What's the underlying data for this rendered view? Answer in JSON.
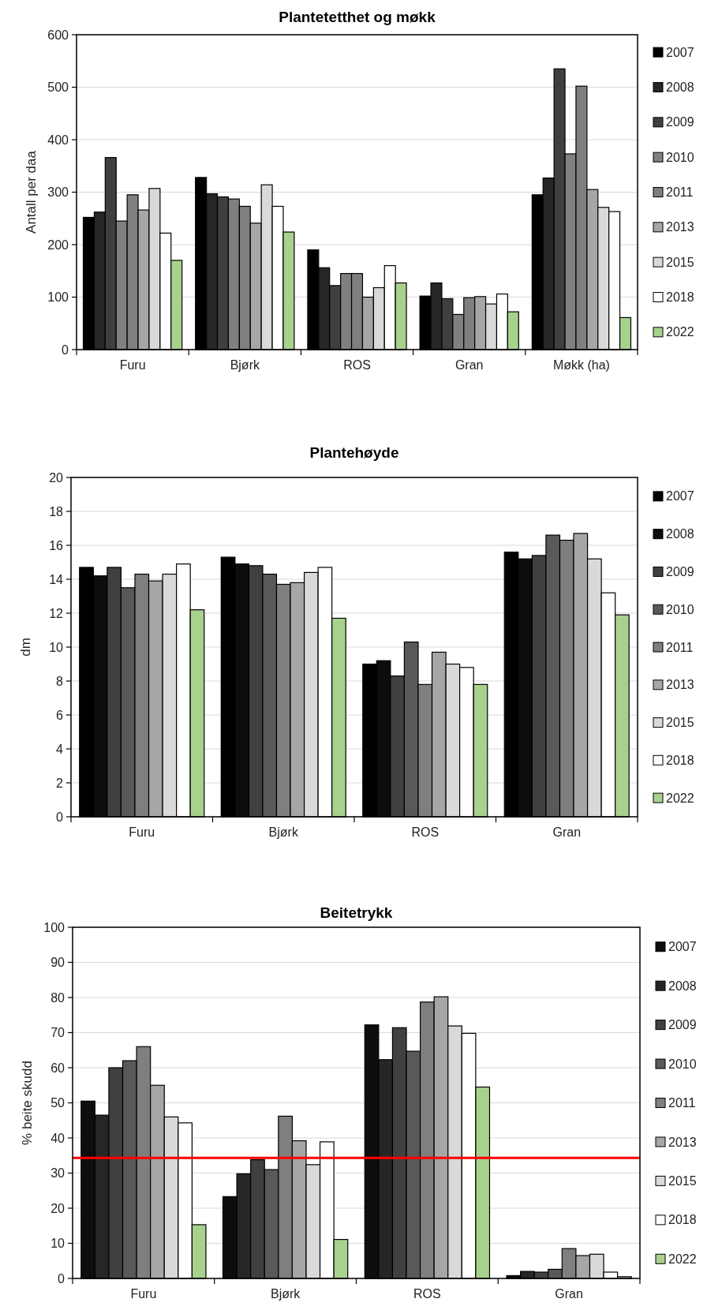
{
  "chart_data": [
    {
      "type": "bar",
      "title": "Plantetetthet og møkk",
      "ylabel": "Antall per daa",
      "categories": [
        "Furu",
        "Bjørk",
        "ROS",
        "Gran",
        "Møkk (ha)"
      ],
      "ylim": [
        0,
        600
      ],
      "yticks": [
        0,
        100,
        200,
        300,
        400,
        500,
        600
      ],
      "grid": "y",
      "legend": "right",
      "series": [
        {
          "name": "2007",
          "color": "#000000",
          "values": [
            252,
            328,
            190,
            102,
            295
          ]
        },
        {
          "name": "2008",
          "color": "#262626",
          "values": [
            262,
            297,
            156,
            127,
            327
          ]
        },
        {
          "name": "2009",
          "color": "#3f3f3f",
          "values": [
            366,
            291,
            122,
            97,
            535
          ]
        },
        {
          "name": "2010",
          "color": "#808080",
          "values": [
            245,
            287,
            145,
            67,
            373
          ]
        },
        {
          "name": "2011",
          "color": "#7f7f7f",
          "values": [
            295,
            273,
            145,
            99,
            502
          ]
        },
        {
          "name": "2013",
          "color": "#a6a6a6",
          "values": [
            266,
            241,
            100,
            101,
            305
          ]
        },
        {
          "name": "2015",
          "color": "#d9d9d9",
          "values": [
            307,
            314,
            118,
            87,
            271
          ]
        },
        {
          "name": "2018",
          "color": "#ffffff",
          "values": [
            222,
            273,
            160,
            106,
            263
          ]
        },
        {
          "name": "2022",
          "color": "#a9d18e",
          "values": [
            170,
            224,
            127,
            72,
            61
          ]
        }
      ]
    },
    {
      "type": "bar",
      "title": "Plantehøyde",
      "ylabel": "dm",
      "categories": [
        "Furu",
        "Bjørk",
        "ROS",
        "Gran"
      ],
      "ylim": [
        0,
        20
      ],
      "yticks": [
        0,
        2,
        4,
        6,
        8,
        10,
        12,
        14,
        16,
        18,
        20
      ],
      "grid": "y",
      "legend": "right",
      "series": [
        {
          "name": "2007",
          "color": "#000000",
          "values": [
            14.7,
            15.3,
            9.0,
            15.6
          ]
        },
        {
          "name": "2008",
          "color": "#0d0d0d",
          "values": [
            14.2,
            14.9,
            9.2,
            15.2
          ]
        },
        {
          "name": "2009",
          "color": "#404040",
          "values": [
            14.7,
            14.8,
            8.3,
            15.4
          ]
        },
        {
          "name": "2010",
          "color": "#595959",
          "values": [
            13.5,
            14.3,
            10.3,
            16.6
          ]
        },
        {
          "name": "2011",
          "color": "#7f7f7f",
          "values": [
            14.3,
            13.7,
            7.8,
            16.3
          ]
        },
        {
          "name": "2013",
          "color": "#a6a6a6",
          "values": [
            13.9,
            13.8,
            9.7,
            16.7
          ]
        },
        {
          "name": "2015",
          "color": "#d9d9d9",
          "values": [
            14.3,
            14.4,
            9.0,
            15.2
          ]
        },
        {
          "name": "2018",
          "color": "#ffffff",
          "values": [
            14.9,
            14.7,
            8.8,
            13.2
          ]
        },
        {
          "name": "2022",
          "color": "#a9d18e",
          "values": [
            12.2,
            11.7,
            7.8,
            11.9
          ]
        }
      ]
    },
    {
      "type": "bar",
      "title": "Beitetrykk",
      "ylabel": "% beite skudd",
      "categories": [
        "Furu",
        "Bjørk",
        "ROS",
        "Gran"
      ],
      "ylim": [
        0,
        100
      ],
      "yticks": [
        0,
        10,
        20,
        30,
        40,
        50,
        60,
        70,
        80,
        90,
        100
      ],
      "grid": "y",
      "legend": "right",
      "ref_lines": [
        {
          "axis": "y",
          "value": 34.3,
          "color": "#ff0000"
        }
      ],
      "series": [
        {
          "name": "2007",
          "color": "#0d0d0d",
          "values": [
            50.5,
            23.3,
            72.2,
            0.8
          ]
        },
        {
          "name": "2008",
          "color": "#262626",
          "values": [
            46.5,
            29.8,
            62.3,
            2.0
          ]
        },
        {
          "name": "2009",
          "color": "#404040",
          "values": [
            60,
            33.8,
            71.4,
            1.8
          ]
        },
        {
          "name": "2010",
          "color": "#595959",
          "values": [
            62,
            31,
            64.7,
            2.6
          ]
        },
        {
          "name": "2011",
          "color": "#7f7f7f",
          "values": [
            66,
            46.2,
            78.7,
            8.5
          ]
        },
        {
          "name": "2013",
          "color": "#a6a6a6",
          "values": [
            55,
            39.2,
            80.2,
            6.5
          ]
        },
        {
          "name": "2015",
          "color": "#d9d9d9",
          "values": [
            46,
            32.4,
            71.9,
            6.9
          ]
        },
        {
          "name": "2018",
          "color": "#ffffff",
          "values": [
            44.3,
            38.9,
            69.8,
            1.8
          ]
        },
        {
          "name": "2022",
          "color": "#a9d18e",
          "values": [
            15.3,
            11.1,
            54.5,
            0.5
          ]
        }
      ]
    }
  ]
}
